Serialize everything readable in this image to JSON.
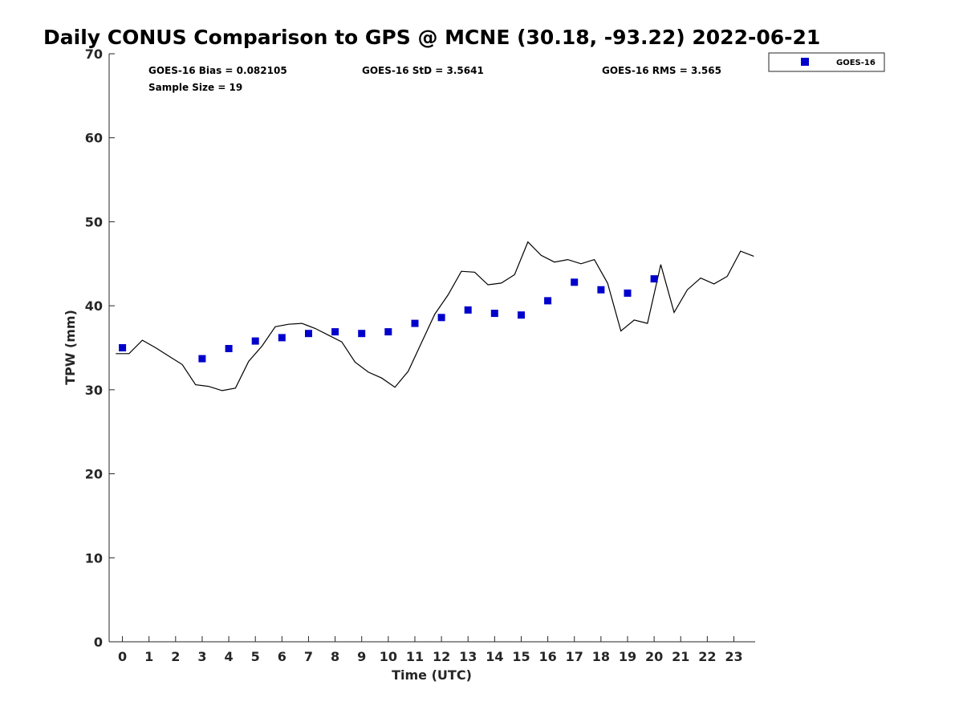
{
  "chart_data": {
    "type": "scatter",
    "title": "Daily CONUS Comparison to GPS @ MCNE (30.18, -93.22) 2022-06-21",
    "xlabel": "Time (UTC)",
    "ylabel": "TPW (mm)",
    "xlim": [
      -0.5,
      23.8
    ],
    "ylim": [
      0,
      70
    ],
    "x_ticks": [
      0,
      1,
      2,
      3,
      4,
      5,
      6,
      7,
      8,
      9,
      10,
      11,
      12,
      13,
      14,
      15,
      16,
      17,
      18,
      19,
      20,
      21,
      22,
      23
    ],
    "x_tick_labels": [
      "0",
      "1",
      "2",
      "3",
      "4",
      "5",
      "6",
      "7",
      "8",
      "9",
      "10",
      "11",
      "12",
      "13",
      "14",
      "15",
      "16",
      "17",
      "18",
      "19",
      "20",
      "21",
      "22",
      "23"
    ],
    "y_ticks": [
      0,
      10,
      20,
      30,
      40,
      50,
      60,
      70
    ],
    "y_tick_labels": [
      "0",
      "10",
      "20",
      "30",
      "40",
      "50",
      "60",
      "70"
    ],
    "grid": false,
    "legend": {
      "position": "top-right",
      "entries": [
        "GOES-16"
      ]
    },
    "stats": {
      "bias": "GOES-16 Bias = 0.082105",
      "std": "GOES-16 StD = 3.5641",
      "rms": "GOES-16 RMS = 3.565",
      "sample_size": "Sample Size = 19"
    },
    "series": [
      {
        "name": "GOES-16",
        "kind": "scatter",
        "color": "#0000cc",
        "x": [
          0,
          3,
          4,
          5,
          6,
          7,
          8,
          9,
          10,
          11,
          12,
          13,
          14,
          15,
          16,
          17,
          18,
          19,
          20
        ],
        "y": [
          35.0,
          33.7,
          34.9,
          35.8,
          36.2,
          36.7,
          36.9,
          36.7,
          36.9,
          37.9,
          38.6,
          39.5,
          39.1,
          38.9,
          40.6,
          42.8,
          41.9,
          41.5,
          43.2
        ]
      },
      {
        "kind": "line",
        "color": "#000000",
        "x": [
          -0.25,
          0.25,
          0.75,
          1.25,
          1.75,
          2.25,
          2.75,
          3.25,
          3.75,
          4.25,
          4.75,
          5.25,
          5.75,
          6.25,
          6.75,
          7.25,
          7.75,
          8.25,
          8.75,
          9.25,
          9.75,
          10.25,
          10.75,
          11.25,
          11.75,
          12.25,
          12.75,
          13.25,
          13.75,
          14.25,
          14.75,
          15.25,
          15.75,
          16.25,
          16.75,
          17.25,
          17.75,
          18.25,
          18.75,
          19.25,
          19.75,
          20.25,
          20.75,
          21.25,
          21.75,
          22.25,
          22.75,
          23.25,
          23.75
        ],
        "y": [
          34.3,
          34.3,
          35.9,
          35.0,
          34.0,
          33.0,
          30.6,
          30.4,
          29.9,
          30.2,
          33.4,
          35.2,
          37.5,
          37.8,
          37.9,
          37.3,
          36.5,
          35.7,
          33.3,
          32.1,
          31.4,
          30.3,
          32.2,
          35.6,
          39.0,
          41.3,
          44.1,
          44.0,
          42.5,
          42.7,
          43.7,
          47.6,
          46.0,
          45.2,
          45.5,
          45.0,
          45.5,
          42.7,
          37.0,
          38.3,
          37.9,
          44.9,
          39.2,
          41.9,
          43.3,
          42.6,
          43.5,
          46.5,
          45.9
        ]
      }
    ]
  },
  "colors": {
    "axis": "#262626",
    "line": "#000000",
    "marker": "#0000cc",
    "background": "#ffffff"
  }
}
